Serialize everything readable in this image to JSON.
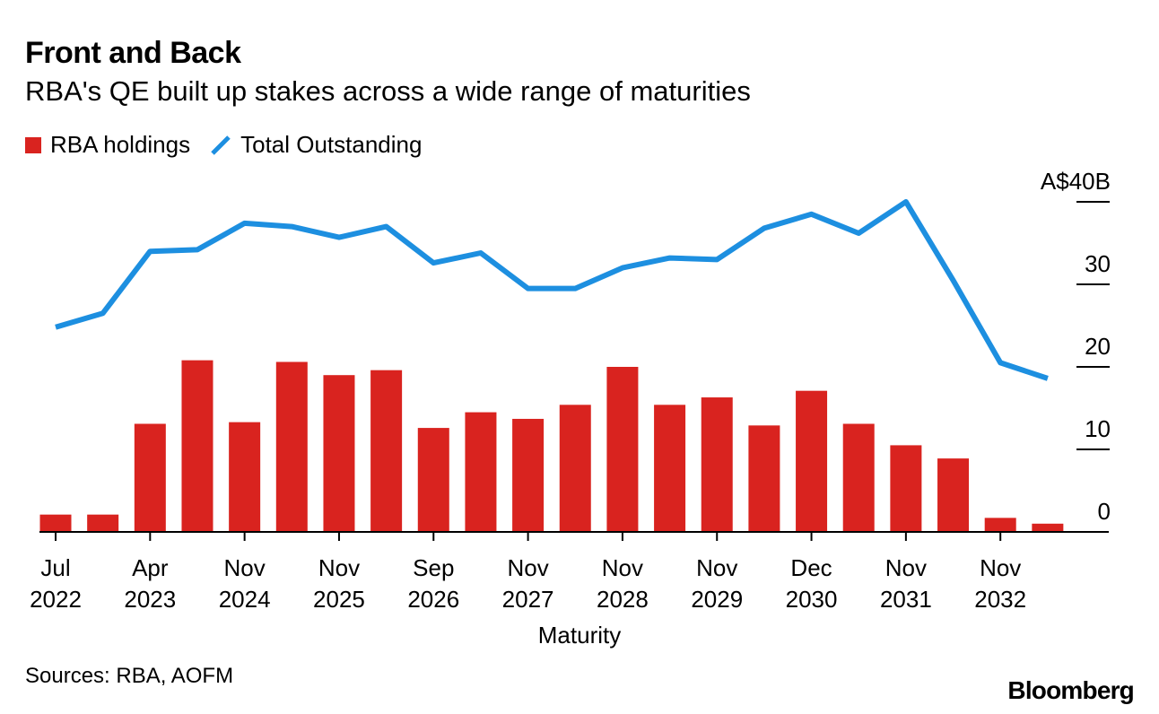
{
  "header": {
    "title": "Front and Back",
    "subtitle": "RBA's QE built up stakes across a wide range of maturities"
  },
  "legend": {
    "bars_label": "RBA holdings",
    "line_label": "Total Outstanding"
  },
  "colors": {
    "bars": "#d9231f",
    "line": "#1d8fe0",
    "axis": "#000000"
  },
  "footer": {
    "source": "Sources: RBA, AOFM",
    "brand": "Bloomberg"
  },
  "chart_data": {
    "type": "bar+line",
    "title": "Front and Back",
    "subtitle": "RBA's QE built up stakes across a wide range of maturities",
    "xlabel": "Maturity",
    "ylabel": "",
    "ylim": [
      0,
      40
    ],
    "yticks": [
      0,
      10,
      20,
      30,
      40
    ],
    "ytick_labels": [
      "0",
      "10",
      "20",
      "30",
      "A$40B"
    ],
    "y_axis_side": "right",
    "x_tick_labels": [
      {
        "index": 0,
        "line1": "Jul",
        "line2": "2022"
      },
      {
        "index": 2,
        "line1": "Apr",
        "line2": "2023"
      },
      {
        "index": 4,
        "line1": "Nov",
        "line2": "2024"
      },
      {
        "index": 6,
        "line1": "Nov",
        "line2": "2025"
      },
      {
        "index": 8,
        "line1": "Sep",
        "line2": "2026"
      },
      {
        "index": 10,
        "line1": "Nov",
        "line2": "2027"
      },
      {
        "index": 12,
        "line1": "Nov",
        "line2": "2028"
      },
      {
        "index": 14,
        "line1": "Nov",
        "line2": "2029"
      },
      {
        "index": 16,
        "line1": "Dec",
        "line2": "2030"
      },
      {
        "index": 18,
        "line1": "Nov",
        "line2": "2031"
      },
      {
        "index": 20,
        "line1": "Nov",
        "line2": "2032"
      }
    ],
    "series": [
      {
        "name": "RBA holdings",
        "type": "bar",
        "values": [
          2.1,
          2.1,
          13.1,
          20.8,
          13.3,
          20.6,
          19.0,
          19.6,
          12.6,
          14.5,
          13.7,
          15.4,
          20.0,
          15.4,
          16.3,
          12.9,
          17.1,
          13.1,
          10.5,
          8.9,
          1.7,
          1.0
        ]
      },
      {
        "name": "Total Outstanding",
        "type": "line",
        "values": [
          24.8,
          26.5,
          34.0,
          34.2,
          37.4,
          37.0,
          35.7,
          37.0,
          32.6,
          33.8,
          29.5,
          29.5,
          32.0,
          33.2,
          33.0,
          36.8,
          38.5,
          36.2,
          40.0,
          30.5,
          20.5,
          18.6
        ]
      }
    ]
  }
}
